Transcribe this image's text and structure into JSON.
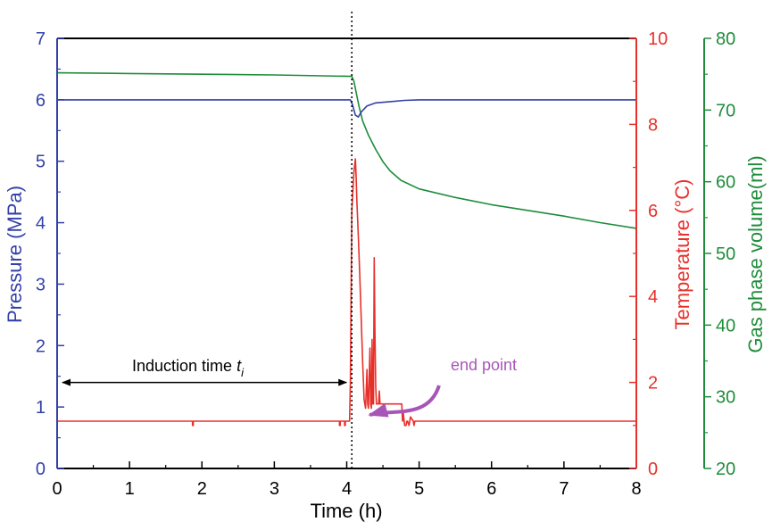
{
  "chart_data": {
    "type": "line",
    "title": "",
    "xlabel": "Time (h)",
    "xlim": [
      0,
      8
    ],
    "x_ticks": [
      "0",
      "1",
      "2",
      "3",
      "4",
      "5",
      "6",
      "7",
      "8"
    ],
    "axes": {
      "pressure": {
        "label": "Pressure (MPa)",
        "side": "left",
        "color": "#3341a8",
        "ylim": [
          0,
          7
        ],
        "ticks": [
          "0",
          "1",
          "2",
          "3",
          "4",
          "5",
          "6",
          "7"
        ]
      },
      "temperature": {
        "label": "Temperature (°C)",
        "side": "right",
        "color": "#e8302a",
        "ylim": [
          0,
          10
        ],
        "ticks": [
          "0",
          "2",
          "4",
          "6",
          "8",
          "10"
        ]
      },
      "gas_volume": {
        "label": "Gas phase volume(ml)",
        "side": "right-offset",
        "color": "#1e8c3a",
        "ylim": [
          20,
          80
        ],
        "ticks": [
          "20",
          "30",
          "40",
          "50",
          "60",
          "70",
          "80"
        ]
      }
    },
    "series": [
      {
        "axis": "pressure",
        "color": "#3341a8",
        "x": [
          0,
          1,
          2,
          3,
          4.05,
          4.08,
          4.12,
          4.16,
          4.2,
          4.28,
          4.4,
          4.6,
          4.8,
          5.0,
          6,
          7,
          8
        ],
        "y": [
          6.0,
          6.0,
          6.0,
          6.0,
          6.0,
          5.92,
          5.75,
          5.72,
          5.8,
          5.9,
          5.95,
          5.97,
          5.99,
          6.0,
          6.0,
          6.0,
          6.0
        ]
      },
      {
        "axis": "temperature",
        "color": "#e8302a",
        "x": [
          0,
          1.87,
          1.87,
          1.88,
          1.88,
          3.9,
          3.9,
          3.91,
          3.91,
          3.97,
          3.97,
          3.98,
          3.98,
          4.04,
          4.05,
          4.07,
          4.1,
          4.12,
          4.13,
          4.14,
          4.16,
          4.18,
          4.2,
          4.22,
          4.24,
          4.26,
          4.28,
          4.29,
          4.3,
          4.32,
          4.33,
          4.34,
          4.35,
          4.36,
          4.37,
          4.38,
          4.39,
          4.4,
          4.41,
          4.42,
          4.43,
          4.44,
          4.45,
          4.46,
          4.47,
          4.48,
          4.49,
          4.5,
          4.55,
          4.76,
          4.77,
          4.78,
          4.8,
          4.82,
          4.83,
          4.84,
          4.86,
          4.87,
          4.88,
          4.92,
          4.93,
          4.94,
          4.95,
          8
        ],
        "y": [
          1.1,
          1.1,
          1.0,
          1.0,
          1.1,
          1.1,
          1.0,
          1.0,
          1.1,
          1.1,
          1.0,
          1.0,
          1.1,
          1.1,
          2.0,
          6.0,
          6.9,
          7.2,
          6.8,
          6.2,
          5.4,
          4.5,
          3.5,
          2.5,
          1.6,
          1.4,
          2.3,
          1.5,
          1.4,
          2.8,
          1.5,
          1.4,
          3.0,
          1.5,
          1.5,
          4.9,
          3.2,
          1.9,
          1.5,
          1.5,
          1.5,
          1.5,
          1.8,
          1.5,
          1.5,
          1.5,
          1.5,
          1.5,
          1.5,
          1.5,
          1.1,
          1.3,
          1.0,
          1.0,
          1.1,
          1.1,
          1.0,
          1.1,
          1.2,
          1.1,
          1.0,
          1.1,
          1.1,
          1.1
        ]
      },
      {
        "axis": "gas_volume",
        "color": "#1e8c3a",
        "x": [
          0,
          1,
          2,
          3,
          4.07,
          4.1,
          4.13,
          4.17,
          4.22,
          4.3,
          4.4,
          4.5,
          4.6,
          4.75,
          5.0,
          5.5,
          6,
          6.5,
          7,
          7.5,
          8
        ],
        "y": [
          75.2,
          75.1,
          75.0,
          74.9,
          74.7,
          74.0,
          72.5,
          70.5,
          68.5,
          66.5,
          64.5,
          62.8,
          61.5,
          60.2,
          59.0,
          57.8,
          56.8,
          56.0,
          55.2,
          54.3,
          53.5
        ]
      }
    ],
    "vline_x": 4.07,
    "annotations": {
      "induction_text": "Induction time ",
      "induction_symbol": "t",
      "induction_subscript": "i",
      "induction_arrow": {
        "x_from": 0,
        "x_to": 4.07,
        "y_pressure": 1.4
      },
      "end_point_text": "end point",
      "end_point_color": "#a855b8",
      "end_point_target": {
        "x": 4.07,
        "y_temperature": 1.1
      }
    }
  }
}
